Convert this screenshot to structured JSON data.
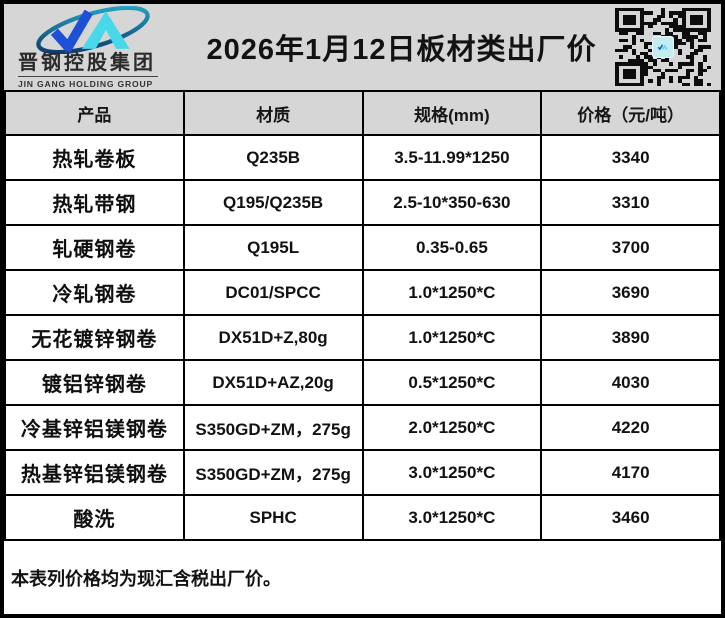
{
  "header": {
    "logo": {
      "company_cn": "晋钢控股集团",
      "company_en": "JIN GANG HOLDING GROUP"
    },
    "title": "2026年1月12日板材类出厂价"
  },
  "table": {
    "columns": [
      "产品",
      "材质",
      "规格(mm)",
      "价格（元/吨）"
    ],
    "rows": [
      [
        "热轧卷板",
        "Q235B",
        "3.5-11.99*1250",
        "3340"
      ],
      [
        "热轧带钢",
        "Q195/Q235B",
        "2.5-10*350-630",
        "3310"
      ],
      [
        "轧硬钢卷",
        "Q195L",
        "0.35-0.65",
        "3700"
      ],
      [
        "冷轧钢卷",
        "DC01/SPCC",
        "1.0*1250*C",
        "3690"
      ],
      [
        "无花镀锌钢卷",
        "DX51D+Z,80g",
        "1.0*1250*C",
        "3890"
      ],
      [
        "镀铝锌钢卷",
        "DX51D+AZ,20g",
        "0.5*1250*C",
        "4030"
      ],
      [
        "冷基锌铝镁钢卷",
        "S350GD+ZM，275g",
        "2.0*1250*C",
        "4220"
      ],
      [
        "热基锌铝镁钢卷",
        "S350GD+ZM，275g",
        "3.0*1250*C",
        "4170"
      ],
      [
        "酸洗",
        "SPHC",
        "3.0*1250*C",
        "3460"
      ]
    ]
  },
  "footer": {
    "note": "本表列价格均为现汇含税出厂价。"
  },
  "colors": {
    "band_background": "#d6d6d6",
    "row_background": "#ffffff",
    "border": "#000000",
    "text": "#151515",
    "logo_navy": "#0a2a5e",
    "logo_blue": "#1d4fd7",
    "logo_cyan": "#49d8ea"
  }
}
